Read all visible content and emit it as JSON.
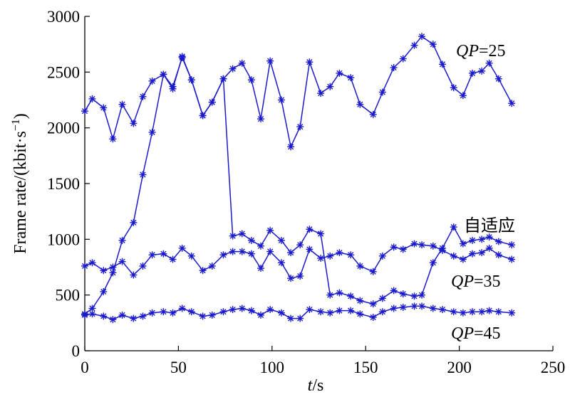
{
  "chart_data": {
    "type": "line",
    "xlabel_italic": "t",
    "xlabel_unit": "/s",
    "ylabel_text": "Frame rate/(kbit·s",
    "ylabel_sup": "−1",
    "ylabel_close": ")",
    "xlim": [
      0,
      250
    ],
    "ylim": [
      0,
      3000
    ],
    "x_ticks": [
      0,
      50,
      100,
      150,
      200,
      250
    ],
    "y_ticks": [
      0,
      500,
      1000,
      1500,
      2000,
      2500,
      3000
    ],
    "x_tick_labels": [
      "0",
      "50",
      "100",
      "150",
      "200",
      "250"
    ],
    "y_tick_labels": [
      "0",
      "500",
      "1000",
      "1500",
      "2000",
      "2500",
      "3000"
    ],
    "grid": false,
    "line_color": "#1a1acc",
    "marker": "asterisk",
    "series": [
      {
        "label_italic": "QP",
        "label_rest": "=25",
        "x": [
          0,
          4,
          10,
          15,
          20,
          26,
          31,
          36,
          42,
          47,
          52,
          57,
          63,
          68,
          74,
          79,
          84,
          89,
          94,
          99,
          105,
          110,
          115,
          120,
          126,
          131,
          136,
          142,
          147,
          154,
          159,
          165,
          170,
          176,
          180,
          186,
          191,
          197,
          202,
          207,
          212,
          216,
          221,
          228
        ],
        "y": [
          2150,
          2260,
          2180,
          1900,
          2210,
          2040,
          2280,
          2420,
          2480,
          2350,
          2640,
          2430,
          2110,
          2230,
          2440,
          2530,
          2580,
          2430,
          2080,
          2600,
          2250,
          1830,
          2010,
          2590,
          2310,
          2370,
          2490,
          2450,
          2210,
          2120,
          2320,
          2540,
          2620,
          2740,
          2820,
          2750,
          2570,
          2360,
          2290,
          2490,
          2510,
          2580,
          2440,
          2220
        ]
      },
      {
        "label_text": "自适应",
        "x": [
          0,
          4,
          10,
          15,
          20,
          26,
          31,
          36,
          42,
          47,
          52,
          57,
          63,
          68,
          74,
          79,
          84,
          89,
          94,
          99,
          105,
          110,
          115,
          120,
          126,
          131,
          136,
          142,
          147,
          154,
          159,
          165,
          170,
          176,
          180,
          186,
          191,
          197,
          202,
          207,
          212,
          216,
          221,
          228
        ],
        "y": [
          330,
          380,
          530,
          700,
          990,
          1150,
          1580,
          1960,
          2480,
          2370,
          2630,
          2430,
          2110,
          2230,
          2440,
          1030,
          1050,
          990,
          940,
          1080,
          990,
          880,
          950,
          1090,
          1050,
          500,
          520,
          490,
          450,
          420,
          470,
          540,
          510,
          490,
          500,
          790,
          920,
          1110,
          960,
          990,
          1000,
          1020,
          980,
          950
        ]
      },
      {
        "label_italic": "QP",
        "label_rest": "=35",
        "x": [
          0,
          4,
          10,
          15,
          20,
          26,
          31,
          36,
          42,
          47,
          52,
          57,
          63,
          68,
          74,
          79,
          84,
          89,
          94,
          99,
          105,
          110,
          115,
          120,
          126,
          131,
          136,
          142,
          147,
          154,
          159,
          165,
          170,
          176,
          180,
          186,
          191,
          197,
          202,
          207,
          212,
          216,
          221,
          228
        ],
        "y": [
          760,
          790,
          720,
          750,
          800,
          680,
          760,
          860,
          870,
          820,
          920,
          850,
          720,
          760,
          860,
          890,
          890,
          870,
          740,
          890,
          790,
          650,
          670,
          910,
          830,
          850,
          880,
          860,
          760,
          710,
          850,
          930,
          910,
          960,
          950,
          940,
          900,
          850,
          820,
          870,
          880,
          920,
          860,
          820
        ]
      },
      {
        "label_italic": "QP",
        "label_rest": "=45",
        "x": [
          0,
          4,
          10,
          15,
          20,
          26,
          31,
          36,
          42,
          47,
          52,
          57,
          63,
          68,
          74,
          79,
          84,
          89,
          94,
          99,
          105,
          110,
          115,
          120,
          126,
          131,
          136,
          142,
          147,
          154,
          159,
          165,
          170,
          176,
          180,
          186,
          191,
          197,
          202,
          207,
          212,
          216,
          221,
          228
        ],
        "y": [
          320,
          330,
          310,
          280,
          320,
          290,
          310,
          340,
          350,
          340,
          380,
          350,
          310,
          320,
          350,
          370,
          380,
          360,
          320,
          370,
          340,
          290,
          290,
          370,
          350,
          340,
          360,
          360,
          330,
          300,
          350,
          380,
          390,
          400,
          400,
          380,
          370,
          350,
          340,
          350,
          350,
          360,
          350,
          340
        ]
      }
    ]
  }
}
